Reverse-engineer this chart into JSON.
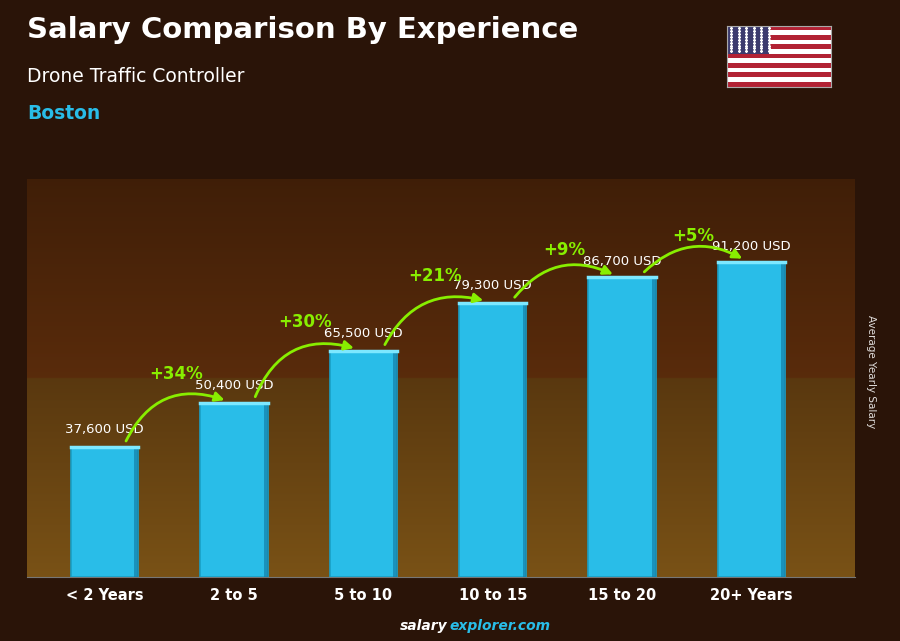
{
  "title_line1": "Salary Comparison By Experience",
  "title_line2": "Drone Traffic Controller",
  "city": "Boston",
  "categories": [
    "< 2 Years",
    "2 to 5",
    "5 to 10",
    "10 to 15",
    "15 to 20",
    "20+ Years"
  ],
  "values": [
    37600,
    50400,
    65500,
    79300,
    86700,
    91200
  ],
  "labels": [
    "37,600 USD",
    "50,400 USD",
    "65,500 USD",
    "79,300 USD",
    "86,700 USD",
    "91,200 USD"
  ],
  "pct_changes": [
    "+34%",
    "+30%",
    "+21%",
    "+9%",
    "+5%"
  ],
  "bar_color": "#29bde8",
  "bar_edge_color": "#1a9fc5",
  "pct_color": "#88ee00",
  "label_color": "#ffffff",
  "title_color": "#ffffff",
  "subtitle_color": "#ffffff",
  "city_color": "#29bde8",
  "footer_salary_color": "#ffffff",
  "footer_explorer_color": "#29bde8",
  "ylabel_text": "Average Yearly Salary",
  "ymax": 115000,
  "bar_width": 0.52
}
